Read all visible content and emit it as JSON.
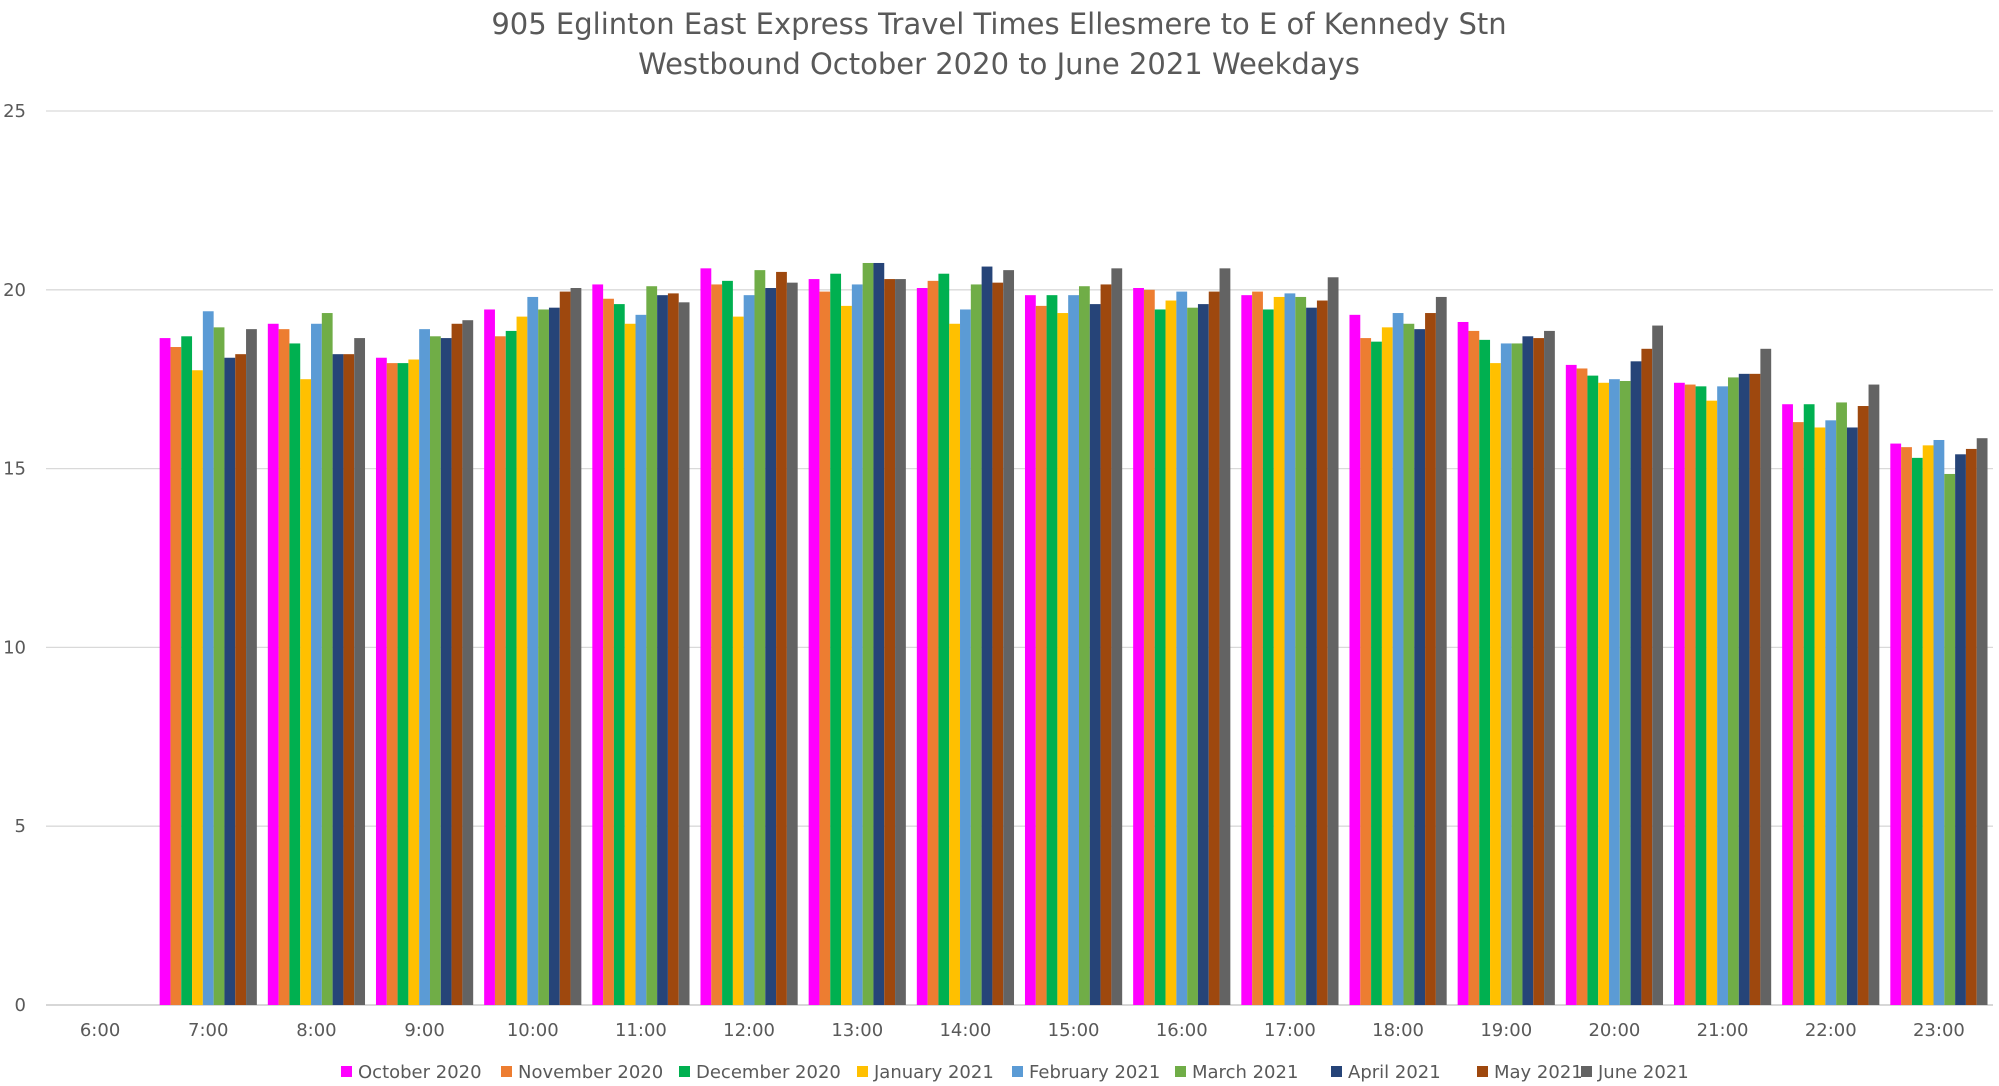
{
  "chart_data": {
    "type": "bar",
    "title": [
      "905 Eglinton East Express Travel Times Ellesmere to E of Kennedy Stn",
      "Westbound October 2020 to June 2021 Weekdays"
    ],
    "categories": [
      "6:00",
      "7:00",
      "8:00",
      "9:00",
      "10:00",
      "11:00",
      "12:00",
      "13:00",
      "14:00",
      "15:00",
      "16:00",
      "17:00",
      "18:00",
      "19:00",
      "20:00",
      "21:00",
      "22:00",
      "23:00"
    ],
    "ylim": [
      0,
      25
    ],
    "yticks": [
      0,
      5,
      10,
      15,
      20,
      25
    ],
    "grid": true,
    "legend_position": "bottom",
    "series": [
      {
        "name": "October 2020",
        "color": "#FF00FF",
        "values": [
          null,
          18.65,
          19.05,
          18.1,
          19.45,
          20.15,
          20.6,
          20.3,
          20.05,
          19.85,
          20.05,
          19.85,
          19.3,
          19.1,
          17.9,
          17.4,
          16.8,
          15.7
        ]
      },
      {
        "name": "November 2020",
        "color": "#ED7D31",
        "values": [
          null,
          18.4,
          18.9,
          17.95,
          18.7,
          19.75,
          20.15,
          19.95,
          20.25,
          19.55,
          20.0,
          19.95,
          18.65,
          18.85,
          17.8,
          17.35,
          16.3,
          15.6
        ]
      },
      {
        "name": "December 2020",
        "color": "#00B050",
        "values": [
          null,
          18.7,
          18.5,
          17.95,
          18.85,
          19.6,
          20.25,
          20.45,
          20.45,
          19.85,
          19.45,
          19.45,
          18.55,
          18.6,
          17.6,
          17.3,
          16.8,
          15.3
        ]
      },
      {
        "name": "January 2021",
        "color": "#FFC000",
        "values": [
          null,
          17.75,
          17.5,
          18.05,
          19.25,
          19.05,
          19.25,
          19.55,
          19.05,
          19.35,
          19.7,
          19.8,
          18.95,
          17.95,
          17.4,
          16.9,
          16.15,
          15.65
        ]
      },
      {
        "name": "February 2021",
        "color": "#5B9BD5",
        "values": [
          null,
          19.4,
          19.05,
          18.9,
          19.8,
          19.3,
          19.85,
          20.15,
          19.45,
          19.85,
          19.95,
          19.9,
          19.35,
          18.5,
          17.5,
          17.3,
          16.35,
          15.8
        ]
      },
      {
        "name": "March 2021",
        "color": "#70AD47",
        "values": [
          null,
          18.95,
          19.35,
          18.7,
          19.45,
          20.1,
          20.55,
          20.75,
          20.15,
          20.1,
          19.5,
          19.8,
          19.05,
          18.5,
          17.45,
          17.55,
          16.85,
          14.85
        ]
      },
      {
        "name": "April 2021",
        "color": "#264478",
        "values": [
          null,
          18.1,
          18.2,
          18.65,
          19.5,
          19.85,
          20.05,
          20.75,
          20.65,
          19.6,
          19.6,
          19.5,
          18.9,
          18.7,
          18.0,
          17.65,
          16.15,
          15.4
        ]
      },
      {
        "name": "May 2021",
        "color": "#9E480E",
        "values": [
          null,
          18.2,
          18.2,
          19.05,
          19.95,
          19.9,
          20.5,
          20.3,
          20.2,
          20.15,
          19.95,
          19.7,
          19.35,
          18.65,
          18.35,
          17.65,
          16.75,
          15.55
        ]
      },
      {
        "name": "June 2021",
        "color": "#636363",
        "values": [
          null,
          18.9,
          18.65,
          19.15,
          20.05,
          19.65,
          20.2,
          20.3,
          20.55,
          20.6,
          20.6,
          20.35,
          19.8,
          18.85,
          19.0,
          18.35,
          17.35,
          15.85
        ]
      }
    ]
  }
}
